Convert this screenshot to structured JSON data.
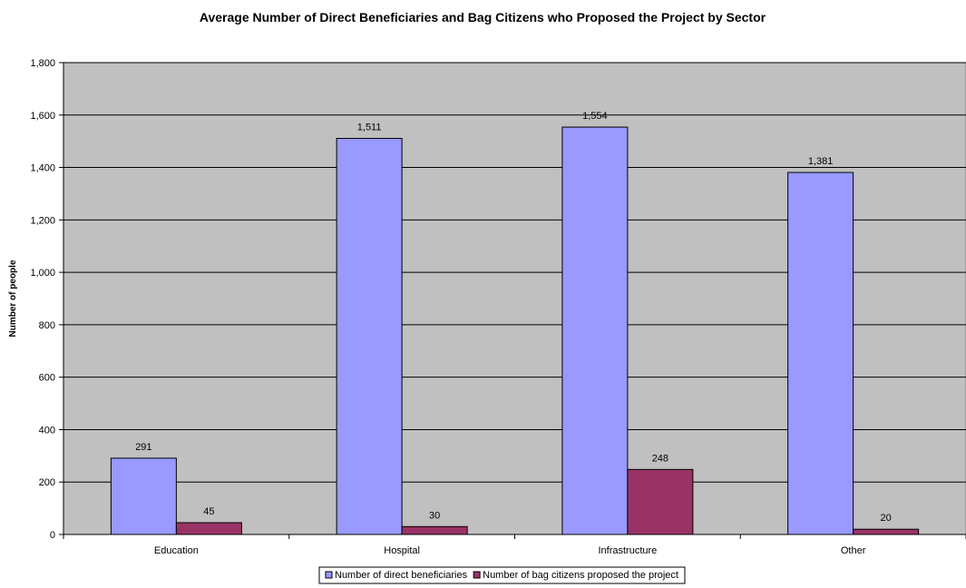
{
  "chart_data": {
    "type": "bar",
    "title": "Average Number of Direct Beneficiaries and Bag Citizens who Proposed the Project by Sector",
    "xlabel": "",
    "ylabel": "Number of people",
    "categories": [
      "Education",
      "Hospital",
      "Infrastructure",
      "Other"
    ],
    "series": [
      {
        "name": "Number of direct beneficiaries",
        "values": [
          291,
          1511,
          1554,
          1381
        ],
        "labels": [
          "291",
          "1,511",
          "1,554",
          "1,381"
        ],
        "color": "#9999ff"
      },
      {
        "name": "Number of bag citizens proposed the project",
        "values": [
          45,
          30,
          248,
          20
        ],
        "labels": [
          "45",
          "30",
          "248",
          "20"
        ],
        "color": "#993366"
      }
    ],
    "ylim": [
      0,
      1800
    ],
    "yticks": [
      0,
      200,
      400,
      600,
      800,
      1000,
      1200,
      1400,
      1600,
      1800
    ],
    "ytick_labels": [
      "0",
      "200",
      "400",
      "600",
      "800",
      "1,000",
      "1,200",
      "1,400",
      "1,600",
      "1,800"
    ],
    "grid": true,
    "legend_position": "bottom",
    "plot_background": "#c0c0c0"
  }
}
